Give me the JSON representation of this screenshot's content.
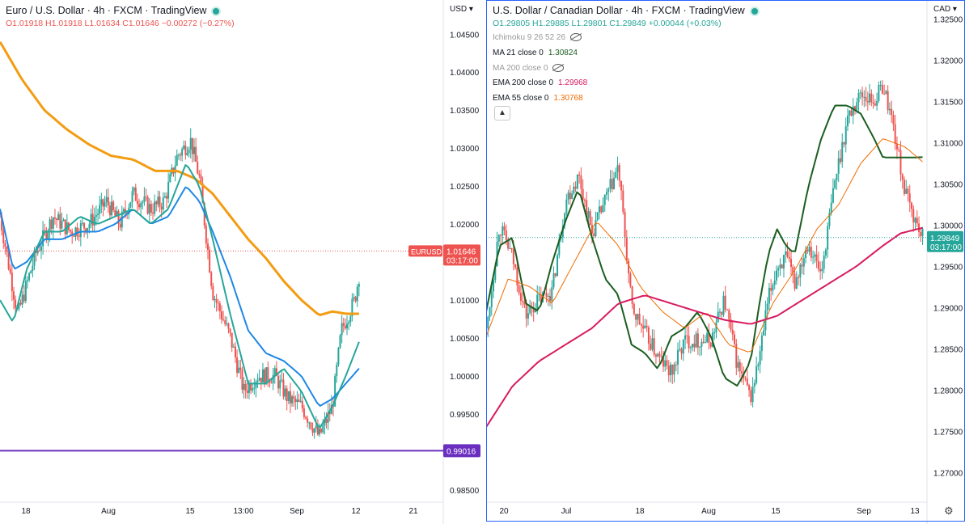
{
  "left": {
    "title": "Euro / U.S. Dollar · 4h · FXCM · TradingView",
    "ohlc": {
      "o": "O1.01918",
      "h": "H1.01918",
      "l": "L1.01634",
      "c": "C1.01646",
      "chg": "−0.00272 (−0.27%)"
    },
    "currency_label": "USD",
    "price_tag": {
      "symbol": "EURUSD",
      "price": "1.01646",
      "countdown": "03:17:00"
    },
    "line_tag": "0.99016",
    "colors": {
      "red": "#ef5350",
      "green": "#26a69a",
      "ema_orange": "#f39c12",
      "ma_blue": "#1e88e5",
      "ma_teal": "#26a69a",
      "hline": "#6b2fbf"
    }
  },
  "right": {
    "title": "U.S. Dollar / Canadian Dollar · 4h · FXCM · TradingView",
    "ohlc": {
      "o": "O1.29805",
      "h": "H1.29885",
      "l": "L1.29801",
      "c": "C1.29849",
      "chg": "+0.00044 (+0.03%)"
    },
    "currency_label": "CAD",
    "price_tag": {
      "price": "1.29849",
      "countdown": "03:17:00"
    },
    "indicators": [
      {
        "label": "Ichimoku 9 26 52 26",
        "value": "",
        "color": "#999999",
        "hidden": true
      },
      {
        "label": "MA 21 close 0",
        "value": "1.30824",
        "color": "#1b5e20",
        "hidden": false
      },
      {
        "label": "MA 200 close 0",
        "value": "",
        "color": "#999999",
        "hidden": true
      },
      {
        "label": "EMA 200 close 0",
        "value": "1.29968",
        "color": "#d81b60",
        "hidden": false
      },
      {
        "label": "EMA 55 close 0",
        "value": "1.30768",
        "color": "#ef6c00",
        "hidden": false
      }
    ],
    "colors": {
      "ma21": "#1b5e20",
      "ema200": "#d81b60",
      "ema55": "#ef6c00",
      "candle_up": "#26a69a",
      "candle_down": "#ef5350"
    }
  },
  "chart_data": [
    {
      "type": "candlestick",
      "title": "Euro / U.S. Dollar · 4h · FXCM · TradingView",
      "ylabel": "USD",
      "y_ticks": [
        "1.04500",
        "1.04000",
        "1.03500",
        "1.03000",
        "1.02500",
        "1.02000",
        "1.01500",
        "1.01000",
        "1.00500",
        "1.00000",
        "0.99500",
        "0.99000",
        "0.98500"
      ],
      "x_ticks": [
        "18",
        "Aug",
        "15",
        "13:00",
        "Sep",
        "12",
        "21"
      ],
      "ylim": [
        0.9835,
        1.0495
      ],
      "horizontal_line": 0.99016,
      "last_price": 1.01646,
      "series": [
        {
          "name": "price_path",
          "x": [
            0,
            0.04,
            0.08,
            0.12,
            0.16,
            0.2,
            0.24,
            0.27,
            0.3,
            0.34,
            0.37,
            0.4,
            0.43,
            0.45,
            0.48,
            0.52,
            0.55,
            0.58,
            0.62,
            0.65,
            0.68,
            0.72,
            0.75,
            0.77,
            0.8,
            0.82
          ],
          "values": [
            1.021,
            1.008,
            1.016,
            1.021,
            1.019,
            1.02,
            1.023,
            1.02,
            1.024,
            1.022,
            1.023,
            1.029,
            1.031,
            1.026,
            1.011,
            1.005,
            0.998,
            1.0,
            1.0,
            0.997,
            0.996,
            0.992,
            0.996,
            1.006,
            1.01,
            1.0165
          ]
        },
        {
          "name": "EMA (orange)",
          "x": [
            0,
            0.05,
            0.1,
            0.15,
            0.2,
            0.25,
            0.3,
            0.35,
            0.4,
            0.44,
            0.48,
            0.52,
            0.56,
            0.6,
            0.64,
            0.68,
            0.72,
            0.75,
            0.78,
            0.81
          ],
          "values": [
            1.044,
            1.039,
            1.035,
            1.0325,
            1.0305,
            1.029,
            1.0285,
            1.027,
            1.027,
            1.026,
            1.024,
            1.021,
            1.018,
            1.0155,
            1.0125,
            1.01,
            1.008,
            1.0085,
            1.0082,
            1.0082
          ]
        },
        {
          "name": "MA (blue)",
          "x": [
            0,
            0.03,
            0.06,
            0.1,
            0.14,
            0.18,
            0.22,
            0.26,
            0.3,
            0.34,
            0.38,
            0.42,
            0.45,
            0.48,
            0.52,
            0.56,
            0.6,
            0.64,
            0.68,
            0.72,
            0.75,
            0.78,
            0.81
          ],
          "values": [
            1.022,
            1.014,
            1.015,
            1.018,
            1.018,
            1.019,
            1.019,
            1.02,
            1.022,
            1.02,
            1.021,
            1.025,
            1.023,
            1.019,
            1.013,
            1.006,
            1.003,
            1.002,
            1.0,
            0.996,
            0.997,
            0.999,
            1.001
          ]
        },
        {
          "name": "MA (teal)",
          "x": [
            0,
            0.03,
            0.06,
            0.1,
            0.14,
            0.18,
            0.22,
            0.26,
            0.3,
            0.34,
            0.38,
            0.42,
            0.45,
            0.48,
            0.52,
            0.56,
            0.6,
            0.64,
            0.68,
            0.72,
            0.75,
            0.78,
            0.81
          ],
          "values": [
            1.01,
            1.007,
            1.014,
            1.019,
            1.019,
            1.021,
            1.02,
            1.021,
            1.022,
            1.02,
            1.022,
            1.028,
            1.025,
            1.018,
            1.008,
            0.999,
            0.999,
            1.001,
            0.998,
            0.993,
            0.996,
            1.0,
            1.0045
          ]
        }
      ]
    },
    {
      "type": "candlestick",
      "title": "U.S. Dollar / Canadian Dollar · 4h · FXCM · TradingView",
      "ylabel": "CAD",
      "y_ticks": [
        "1.32500",
        "1.32000",
        "1.31500",
        "1.31000",
        "1.30500",
        "1.30000",
        "1.29500",
        "1.29000",
        "1.28500",
        "1.28000",
        "1.27500",
        "1.27000"
      ],
      "x_ticks": [
        "20",
        "Jul",
        "18",
        "Aug",
        "15",
        "Sep",
        "13"
      ],
      "ylim": [
        1.2665,
        1.3273
      ],
      "last_price": 1.29849,
      "series": [
        {
          "name": "price_path",
          "x": [
            0,
            0.03,
            0.06,
            0.09,
            0.12,
            0.15,
            0.18,
            0.21,
            0.24,
            0.27,
            0.3,
            0.33,
            0.36,
            0.39,
            0.42,
            0.45,
            0.48,
            0.51,
            0.54,
            0.57,
            0.6,
            0.62,
            0.64,
            0.66,
            0.68,
            0.7,
            0.73,
            0.76,
            0.79,
            0.82,
            0.85,
            0.88,
            0.9,
            0.92,
            0.95,
            0.97,
            0.99
          ],
          "values": [
            1.287,
            1.3,
            1.296,
            1.289,
            1.291,
            1.292,
            1.303,
            1.306,
            1.299,
            1.303,
            1.307,
            1.29,
            1.287,
            1.284,
            1.282,
            1.286,
            1.286,
            1.286,
            1.291,
            1.283,
            1.279,
            1.284,
            1.291,
            1.295,
            1.296,
            1.293,
            1.298,
            1.294,
            1.305,
            1.313,
            1.316,
            1.315,
            1.317,
            1.313,
            1.304,
            1.301,
            1.2985
          ]
        },
        {
          "name": "MA 21 close 0",
          "x": [
            0,
            0.03,
            0.06,
            0.09,
            0.12,
            0.15,
            0.18,
            0.21,
            0.24,
            0.27,
            0.3,
            0.33,
            0.36,
            0.39,
            0.42,
            0.45,
            0.48,
            0.51,
            0.54,
            0.57,
            0.6,
            0.62,
            0.64,
            0.66,
            0.68,
            0.7,
            0.73,
            0.76,
            0.79,
            0.82,
            0.85,
            0.88,
            0.9,
            0.92,
            0.95,
            0.97,
            0.99
          ],
          "values": [
            1.2895,
            1.2975,
            1.2985,
            1.2905,
            1.2895,
            1.2955,
            1.3005,
            1.3045,
            1.2985,
            1.2935,
            1.2915,
            1.2855,
            1.2845,
            1.2825,
            1.2865,
            1.2875,
            1.2895,
            1.2865,
            1.2815,
            1.2805,
            1.2835,
            1.2905,
            1.2965,
            1.2995,
            1.2975,
            1.2965,
            1.3045,
            1.3105,
            1.3145,
            1.3145,
            1.3135,
            1.3105,
            1.3082,
            1.3082,
            1.3082,
            1.3082,
            1.30824
          ]
        },
        {
          "name": "EMA 55 close 0",
          "x": [
            0,
            0.05,
            0.1,
            0.15,
            0.2,
            0.25,
            0.3,
            0.35,
            0.4,
            0.45,
            0.5,
            0.55,
            0.6,
            0.65,
            0.7,
            0.75,
            0.8,
            0.85,
            0.9,
            0.95,
            0.99
          ],
          "values": [
            1.2865,
            1.2935,
            1.2925,
            1.2905,
            1.2955,
            1.3005,
            1.2975,
            1.2925,
            1.2895,
            1.2875,
            1.2895,
            1.2855,
            1.2845,
            1.2905,
            1.2945,
            1.2995,
            1.3025,
            1.3075,
            1.3105,
            1.3095,
            1.30768
          ]
        },
        {
          "name": "EMA 200 close 0",
          "x": [
            0,
            0.06,
            0.12,
            0.18,
            0.24,
            0.3,
            0.36,
            0.42,
            0.48,
            0.54,
            0.6,
            0.66,
            0.72,
            0.78,
            0.84,
            0.9,
            0.94,
            0.99
          ],
          "values": [
            1.2755,
            1.2805,
            1.2835,
            1.2855,
            1.2875,
            1.2905,
            1.2915,
            1.2905,
            1.2895,
            1.2885,
            1.288,
            1.289,
            1.291,
            1.293,
            1.295,
            1.2975,
            1.299,
            1.29968
          ]
        }
      ]
    }
  ]
}
